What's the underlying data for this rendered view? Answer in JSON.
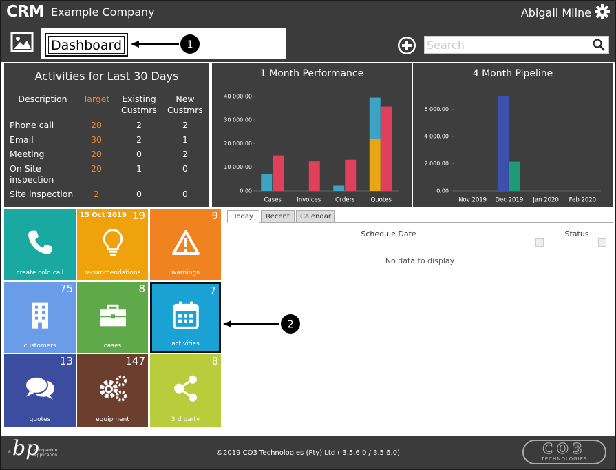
{
  "header": {
    "logo": "CRM",
    "company": "Example Company",
    "user": "Abigail Milne"
  },
  "toolbar": {
    "page_title": "Dashboard",
    "search_placeholder": "Search"
  },
  "callouts": [
    1,
    2
  ],
  "activities": {
    "title": "Activities for Last 30 Days",
    "columns": [
      "Description",
      "Target",
      "Existing Custmrs",
      "New Custmrs"
    ],
    "rows": [
      [
        "Phone call",
        20,
        2,
        2
      ],
      [
        "Email",
        30,
        2,
        1
      ],
      [
        "Meeting",
        20,
        0,
        2
      ],
      [
        "On Site inspection",
        20,
        1,
        0
      ],
      [
        "Site inspection",
        2,
        0,
        0
      ]
    ]
  },
  "chart_data": [
    {
      "type": "bar",
      "title": "1 Month Performance",
      "categories": [
        "Cases",
        "Invoices",
        "Orders",
        "Quotes"
      ],
      "series": [
        {
          "color": "#e9a516",
          "group": 0,
          "values": [
            0,
            0,
            0,
            22000
          ]
        },
        {
          "color": "#3ea2c2",
          "group": 0,
          "values": [
            7200,
            0,
            2200,
            17500
          ]
        },
        {
          "color": "#e0405c",
          "group": 1,
          "values": [
            15000,
            12500,
            13200,
            35700
          ]
        }
      ],
      "ylim": [
        0,
        42000
      ],
      "yticks": [
        {
          "value": 0,
          "label": "0.00"
        },
        {
          "value": 10000,
          "label": "10 000.00"
        },
        {
          "value": 20000,
          "label": "20 000.00"
        },
        {
          "value": 30000,
          "label": "30 000.00"
        },
        {
          "value": 40000,
          "label": "40 000.00"
        }
      ]
    },
    {
      "type": "bar",
      "title": "4 Month Pipeline",
      "categories": [
        "Nov 2019",
        "Dec 2019",
        "Jan 2020",
        "Feb 2020"
      ],
      "series": [
        {
          "color": "#3d50b0",
          "group": 0,
          "values": [
            0,
            7000,
            0,
            0
          ]
        },
        {
          "color": "#1e9a78",
          "group": 1,
          "values": [
            0,
            2150,
            0,
            0
          ]
        }
      ],
      "ylim": [
        0,
        7200
      ],
      "yticks": [
        {
          "value": 0,
          "label": "0.00"
        },
        {
          "value": 2000,
          "label": "2 000.00"
        },
        {
          "value": 4000,
          "label": "4 000.00"
        },
        {
          "value": 6000,
          "label": "6 000.00"
        }
      ]
    }
  ],
  "tiles": [
    {
      "label": "create cold call"
    },
    {
      "label": "recommendations",
      "date": "15 Oct 2019",
      "count": 19
    },
    {
      "label": "warnings",
      "count": 9
    },
    {
      "label": "customers",
      "count": 75
    },
    {
      "label": "cases",
      "count": 8
    },
    {
      "label": "activities",
      "count": 7
    },
    {
      "label": "quotes",
      "count": 13
    },
    {
      "label": "equipment",
      "count": 147
    },
    {
      "label": "3rd party",
      "count": 8
    }
  ],
  "schedule": {
    "tabs": [
      "Today",
      "Recent",
      "Calendar"
    ],
    "columns": [
      "Schedule Date",
      "Status"
    ],
    "empty": "No data to display"
  },
  "footer": {
    "brand_prefix": "a",
    "brand": "bp",
    "brand_sub": "companion application",
    "copyright": "©2019 CO3 Technologies (Pty) Ltd ( 3.5.6.0 / 3.5.6.0)",
    "logo": "CO3",
    "logo_sub": "TECHNOLOGIES"
  }
}
